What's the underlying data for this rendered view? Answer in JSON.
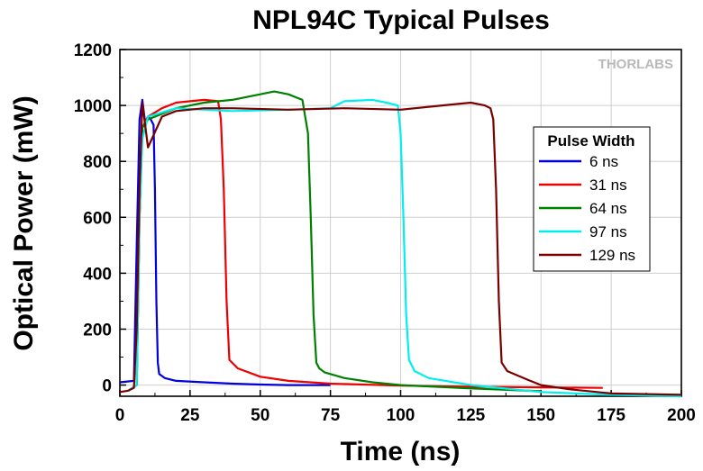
{
  "chart_data": {
    "type": "line",
    "title": "NPL94C Typical Pulses",
    "xlabel": "Time (ns)",
    "ylabel": "Optical Power (mW)",
    "xlim": [
      0,
      200
    ],
    "ylim": [
      -40,
      1200
    ],
    "xticks": [
      0,
      25,
      50,
      75,
      100,
      125,
      150,
      175,
      200
    ],
    "yticks": [
      0,
      200,
      400,
      600,
      800,
      1000,
      1200
    ],
    "grid": true,
    "legend": {
      "title": "Pulse Width",
      "placement": "right"
    },
    "watermark": "THORLABS",
    "series": [
      {
        "name": "6 ns",
        "color": "#0000dd",
        "x": [
          0,
          5,
          6,
          7,
          8,
          9,
          10,
          11,
          12,
          12.5,
          13,
          13.5,
          14,
          16,
          20,
          30,
          40,
          50,
          60,
          75
        ],
        "y": [
          10,
          15,
          500,
          950,
          1020,
          940,
          960,
          950,
          930,
          700,
          300,
          80,
          40,
          25,
          15,
          10,
          5,
          2,
          0,
          0
        ]
      },
      {
        "name": "31 ns",
        "color": "#ee0000",
        "x": [
          3,
          6,
          7,
          8,
          10,
          15,
          20,
          25,
          30,
          35,
          36,
          37,
          38,
          39,
          42,
          50,
          60,
          75,
          100,
          125,
          150,
          172
        ],
        "y": [
          -20,
          0,
          600,
          920,
          960,
          990,
          1010,
          1015,
          1020,
          1015,
          950,
          700,
          300,
          90,
          60,
          30,
          15,
          5,
          -2,
          -6,
          -8,
          -10
        ]
      },
      {
        "name": "64 ns",
        "color": "#008000",
        "x": [
          3,
          6,
          7,
          8,
          10,
          20,
          30,
          40,
          50,
          55,
          60,
          65,
          67,
          68,
          69,
          70,
          71,
          73,
          80,
          90,
          100,
          125,
          150
        ],
        "y": [
          -20,
          0,
          600,
          920,
          950,
          990,
          1010,
          1020,
          1040,
          1050,
          1040,
          1020,
          900,
          600,
          250,
          80,
          60,
          45,
          25,
          10,
          0,
          -12,
          -22
        ]
      },
      {
        "name": "97 ns",
        "color": "#00eeee",
        "x": [
          3,
          6,
          7,
          8,
          10,
          20,
          40,
          60,
          75,
          80,
          90,
          95,
          99,
          100,
          101,
          102,
          103,
          105,
          110,
          125,
          150,
          175,
          200
        ],
        "y": [
          -20,
          0,
          600,
          880,
          960,
          990,
          980,
          985,
          990,
          1015,
          1020,
          1010,
          1000,
          900,
          600,
          250,
          90,
          50,
          25,
          0,
          -25,
          -35,
          -40
        ]
      },
      {
        "name": "129 ns",
        "color": "#7a0000",
        "x": [
          0,
          3,
          5,
          6,
          7,
          8,
          10,
          15,
          20,
          30,
          40,
          60,
          80,
          100,
          110,
          120,
          125,
          130,
          132,
          133,
          134,
          135,
          136,
          138,
          145,
          150,
          160,
          170,
          175,
          200
        ],
        "y": [
          -25,
          -20,
          -10,
          200,
          700,
          1010,
          850,
          960,
          980,
          990,
          990,
          985,
          990,
          985,
          995,
          1005,
          1010,
          1000,
          990,
          950,
          700,
          300,
          80,
          50,
          20,
          0,
          -15,
          -25,
          -30,
          -35
        ]
      }
    ]
  }
}
